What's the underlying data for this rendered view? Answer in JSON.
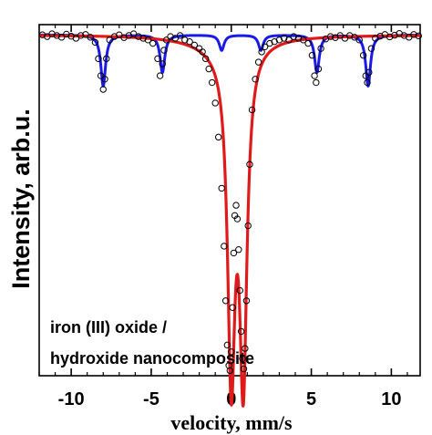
{
  "chart_data": {
    "type": "line",
    "xlabel": "velocity, mm/s",
    "ylabel": "Intensity, arb.u.",
    "x_ticks": [
      -10,
      -5,
      0,
      5,
      10
    ],
    "x_tick_labels": [
      "-10",
      "-5",
      "0",
      "5",
      "10"
    ],
    "xlim": [
      -12,
      11.8
    ],
    "ylim": [
      0,
      1.03
    ],
    "y_ticks_shown": false,
    "annotation": [
      "iron (III) oxide /",
      "hydroxide nanocomposite"
    ],
    "series": [
      {
        "kind": "measured",
        "marker": "open-circle",
        "color": "#000000",
        "x": [
          -11.8,
          -11.5,
          -11.2,
          -10.9,
          -10.6,
          -10.3,
          -10.0,
          -9.7,
          -9.4,
          -9.1,
          -8.8,
          -8.5,
          -8.3,
          -8.15,
          -8.0,
          -7.9,
          -7.8,
          -7.6,
          -7.3,
          -7.0,
          -6.7,
          -6.4,
          -6.1,
          -5.8,
          -5.5,
          -5.2,
          -4.9,
          -4.6,
          -4.45,
          -4.3,
          -4.2,
          -4.05,
          -3.8,
          -3.5,
          -3.2,
          -2.9,
          -2.6,
          -2.3,
          -2.0,
          -1.8,
          -1.6,
          -1.4,
          -1.2,
          -1.0,
          -0.8,
          -0.6,
          -0.45,
          -0.35,
          -0.25,
          -0.15,
          -0.08,
          0.0,
          0.08,
          0.15,
          0.22,
          0.3,
          0.38,
          0.46,
          0.54,
          0.62,
          0.7,
          0.78,
          0.86,
          0.95,
          1.05,
          1.15,
          1.3,
          1.5,
          1.7,
          1.9,
          2.1,
          2.4,
          2.7,
          3.0,
          3.3,
          3.6,
          3.9,
          4.2,
          4.5,
          4.8,
          5.05,
          5.2,
          5.3,
          5.45,
          5.6,
          5.9,
          6.2,
          6.5,
          6.8,
          7.1,
          7.4,
          7.7,
          8.0,
          8.25,
          8.4,
          8.5,
          8.6,
          8.75,
          9.0,
          9.3,
          9.6,
          9.9,
          10.2,
          10.5,
          10.8,
          11.1,
          11.4,
          11.7
        ],
        "y": [
          1.0,
          0.995,
          1.003,
          0.998,
          0.993,
          1.002,
          0.996,
          0.99,
          0.998,
          1.001,
          0.993,
          0.978,
          0.93,
          0.88,
          0.84,
          0.87,
          0.93,
          0.985,
          0.995,
          1.0,
          0.992,
          0.998,
          1.003,
          0.995,
          0.99,
          0.985,
          0.975,
          0.93,
          0.88,
          0.915,
          0.955,
          0.985,
          0.995,
          0.99,
          0.998,
          0.985,
          0.98,
          0.97,
          0.96,
          0.95,
          0.93,
          0.9,
          0.86,
          0.8,
          0.7,
          0.55,
          0.38,
          0.22,
          0.09,
          0.03,
          0.015,
          0.07,
          0.2,
          0.36,
          0.47,
          0.5,
          0.46,
          0.37,
          0.25,
          0.13,
          0.05,
          0.02,
          0.08,
          0.22,
          0.44,
          0.62,
          0.78,
          0.87,
          0.92,
          0.95,
          0.965,
          0.975,
          0.98,
          0.985,
          0.99,
          0.985,
          0.995,
          0.99,
          0.985,
          0.975,
          0.94,
          0.88,
          0.86,
          0.9,
          0.96,
          0.988,
          0.995,
          0.992,
          0.998,
          0.99,
          0.998,
          0.993,
          0.985,
          0.94,
          0.88,
          0.86,
          0.89,
          0.96,
          0.99,
          0.996,
          1.001,
          0.994,
          0.999,
          1.004,
          0.998,
          0.993,
          1.001,
          0.997
        ]
      },
      {
        "kind": "fit-total",
        "color": "#e01a1a",
        "peaks": [
          {
            "center": 0.0,
            "hwhm": 0.28,
            "depth": 0.94
          },
          {
            "center": 0.75,
            "hwhm": 0.28,
            "depth": 0.95
          },
          {
            "center": -0.5,
            "hwhm": 2.2,
            "depth": 0.03
          }
        ]
      },
      {
        "kind": "fit-sextet",
        "color": "#1a1ae6",
        "peaks": [
          {
            "center": -8.0,
            "hwhm": 0.18,
            "depth": 0.15
          },
          {
            "center": -4.3,
            "hwhm": 0.18,
            "depth": 0.11
          },
          {
            "center": -0.6,
            "hwhm": 0.18,
            "depth": 0.045
          },
          {
            "center": 1.85,
            "hwhm": 0.18,
            "depth": 0.045
          },
          {
            "center": 5.35,
            "hwhm": 0.18,
            "depth": 0.11
          },
          {
            "center": 8.55,
            "hwhm": 0.18,
            "depth": 0.15
          }
        ]
      }
    ]
  }
}
